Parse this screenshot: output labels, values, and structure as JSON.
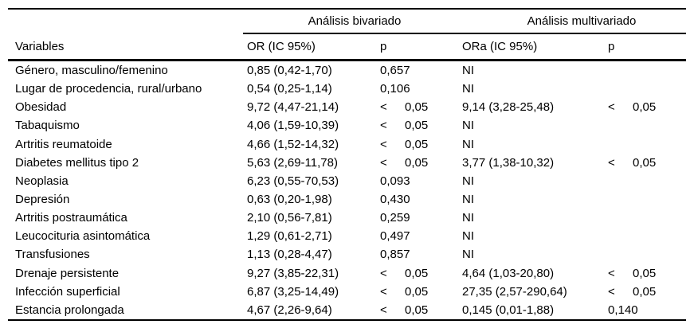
{
  "table": {
    "group_headers": [
      "Análisis bivariado",
      "Análisis multivariado"
    ],
    "column_headers": [
      "Variables",
      "OR (IC 95%)",
      "p",
      "ORa (IC 95%)",
      "p"
    ],
    "rows": [
      {
        "variable": "Género, masculino/femenino",
        "or": "0,85 (0,42-1,70)",
        "p": "0,657",
        "ora": "NI",
        "p_multi": ""
      },
      {
        "variable": "Lugar de procedencia, rural/urbano",
        "or": "0,54 (0,25-1,14)",
        "p": "0,106",
        "ora": "NI",
        "p_multi": ""
      },
      {
        "variable": "Obesidad",
        "or": "9,72 (4,47-21,14)",
        "p": "< 0,05",
        "ora": "9,14 (3,28-25,48)",
        "p_multi": "< 0,05"
      },
      {
        "variable": "Tabaquismo",
        "or": "4,06 (1,59-10,39)",
        "p": "< 0,05",
        "ora": "NI",
        "p_multi": ""
      },
      {
        "variable": "Artritis reumatoide",
        "or": "4,66 (1,52-14,32)",
        "p": "< 0,05",
        "ora": "NI",
        "p_multi": ""
      },
      {
        "variable": "Diabetes mellitus tipo 2",
        "or": "5,63 (2,69-11,78)",
        "p": "< 0,05",
        "ora": "3,77 (1,38-10,32)",
        "p_multi": "< 0,05"
      },
      {
        "variable": "Neoplasia",
        "or": "6,23 (0,55-70,53)",
        "p": "0,093",
        "ora": "NI",
        "p_multi": ""
      },
      {
        "variable": "Depresión",
        "or": "0,63 (0,20-1,98)",
        "p": "0,430",
        "ora": "NI",
        "p_multi": ""
      },
      {
        "variable": "Artritis postraumática",
        "or": "2,10 (0,56-7,81)",
        "p": "0,259",
        "ora": "NI",
        "p_multi": ""
      },
      {
        "variable": "Leucocituria asintomática",
        "or": "1,29 (0,61-2,71)",
        "p": "0,497",
        "ora": "NI",
        "p_multi": ""
      },
      {
        "variable": "Transfusiones",
        "or": "1,13 (0,28-4,47)",
        "p": "0,857",
        "ora": "NI",
        "p_multi": ""
      },
      {
        "variable": "Drenaje persistente",
        "or": "9,27 (3,85-22,31)",
        "p": "< 0,05",
        "ora": "4,64 (1,03-20,80)",
        "p_multi": "< 0,05"
      },
      {
        "variable": "Infección superficial",
        "or": "6,87 (3,25-14,49)",
        "p": "< 0,05",
        "ora": "27,35 (2,57-290,64)",
        "p_multi": "< 0,05"
      },
      {
        "variable": "Estancia prolongada",
        "or": "4,67 (2,26-9,64)",
        "p": "< 0,05",
        "ora": "0,145 (0,01-1,88)",
        "p_multi": "0,140"
      }
    ]
  },
  "colors": {
    "text": "#000000",
    "background": "#ffffff",
    "rule": "#000000"
  }
}
